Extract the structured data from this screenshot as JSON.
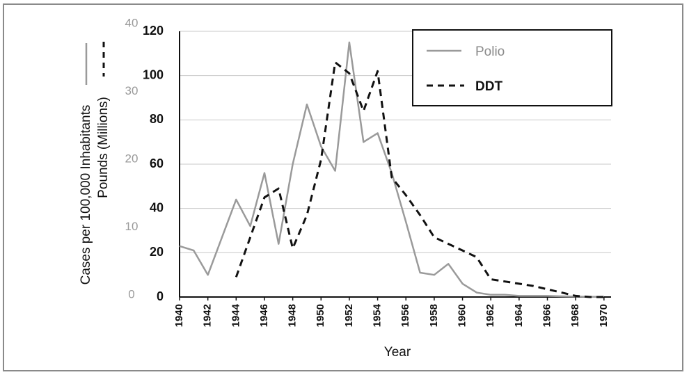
{
  "chart_data": {
    "type": "line",
    "xlabel": "Year",
    "ylabel_left": "Cases per 100,000 Inhabitants",
    "ylabel_right": "Pounds (Millions)",
    "x_ticks": [
      "1940",
      "1942",
      "1944",
      "1946",
      "1948",
      "1950",
      "1952",
      "1954",
      "1956",
      "1958",
      "1960",
      "1962",
      "1964",
      "1966",
      "1968",
      "1970"
    ],
    "y_ticks_inner": [
      "0",
      "20",
      "40",
      "60",
      "80",
      "100",
      "120"
    ],
    "y_ticks_outer": [
      "0",
      "10",
      "20",
      "30",
      "40"
    ],
    "xlim": [
      1940,
      1970.5
    ],
    "ylim": [
      0,
      120
    ],
    "grid": true,
    "legend_position": "top-right",
    "series": [
      {
        "name": "Polio",
        "color": "#9a9a9a",
        "dash": "solid",
        "x": [
          1940,
          1941,
          1942,
          1943,
          1944,
          1945,
          1946,
          1947,
          1948,
          1949,
          1950,
          1951,
          1952,
          1953,
          1954,
          1955,
          1956,
          1957,
          1958,
          1959,
          1960,
          1961,
          1962,
          1963,
          1964,
          1965,
          1966,
          1967,
          1968,
          1969,
          1970
        ],
        "y": [
          23,
          21,
          10,
          27,
          44,
          32,
          56,
          24,
          60,
          87,
          68,
          57,
          115,
          70,
          74,
          56,
          34,
          11,
          10,
          15,
          6,
          2,
          1,
          1,
          0.5,
          0.5,
          0.5,
          0.3,
          0.2,
          0.1,
          0.1
        ]
      },
      {
        "name": "DDT",
        "color": "#111111",
        "dash": "dashed",
        "x": [
          1944,
          1945,
          1946,
          1947,
          1948,
          1949,
          1950,
          1951,
          1952,
          1953,
          1954,
          1955,
          1956,
          1957,
          1958,
          1959,
          1960,
          1961,
          1962,
          1963,
          1964,
          1965,
          1966,
          1967,
          1968,
          1969,
          1970
        ],
        "y": [
          9,
          27,
          45,
          49,
          22,
          37,
          62,
          106,
          101,
          84,
          102,
          54,
          46,
          37,
          27,
          24,
          21,
          18,
          8,
          7,
          6,
          5,
          3.5,
          2,
          0.5,
          0,
          0
        ]
      }
    ]
  }
}
